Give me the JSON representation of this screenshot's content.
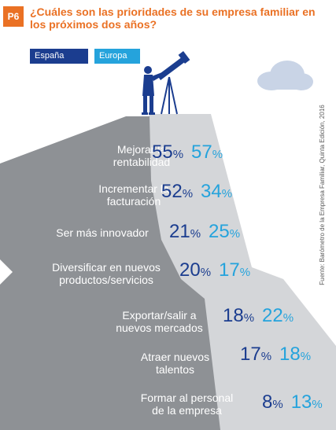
{
  "badge": "P6",
  "title": "¿Cuáles son las prioridades de su empresa familiar en los próximos dos años?",
  "legend": {
    "es": "España",
    "eu": "Europa"
  },
  "source": "Fuente: Barómetro de la Empresa Familiar, Quinta Edición, 2016",
  "colors": {
    "es": "#1b3d8f",
    "eu": "#25a3dc",
    "accent": "#ea7124",
    "mountain": "#8e9195"
  },
  "chart_data": {
    "type": "table",
    "categories": [
      "Mejorar la rentabilidad",
      "Incrementar la facturación",
      "Ser más innovador",
      "Diversificar en nuevos productos/servicios",
      "Exportar/salir a nuevos mercados",
      "Atraer nuevos talentos",
      "Formar al personal de la empresa"
    ],
    "series": [
      {
        "name": "España",
        "values": [
          55,
          52,
          21,
          20,
          18,
          17,
          8
        ]
      },
      {
        "name": "Europa",
        "values": [
          57,
          34,
          25,
          17,
          22,
          18,
          13
        ]
      }
    ],
    "unit": "%"
  },
  "rows": [
    {
      "line1": "Mejorar la",
      "line2": "rentabilidad",
      "es": "55",
      "eu": "57",
      "pct": "%"
    },
    {
      "line1": "Incrementar la",
      "line2": "facturación",
      "es": "52",
      "eu": "34",
      "pct": "%"
    },
    {
      "line1": "Ser más innovador",
      "line2": "",
      "es": "21",
      "eu": "25",
      "pct": "%"
    },
    {
      "line1": "Diversificar en nuevos",
      "line2": "productos/servicios",
      "es": "20",
      "eu": "17",
      "pct": "%"
    },
    {
      "line1": "Exportar/salir a",
      "line2": "nuevos mercados",
      "es": "18",
      "eu": "22",
      "pct": "%"
    },
    {
      "line1": "Atraer nuevos",
      "line2": "talentos",
      "es": "17",
      "eu": "18",
      "pct": "%"
    },
    {
      "line1": "Formar al personal",
      "line2": "de la empresa",
      "es": "8",
      "eu": "13",
      "pct": "%"
    }
  ]
}
